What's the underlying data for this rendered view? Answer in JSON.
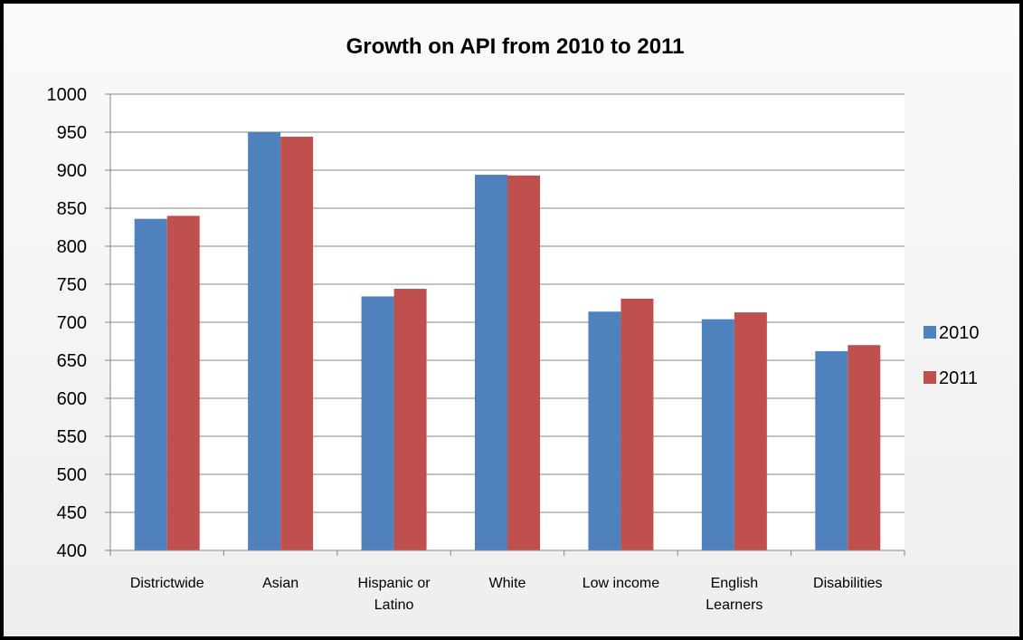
{
  "chart_data": {
    "type": "bar",
    "title": "Growth on API from 2010 to 2011",
    "xlabel": "",
    "ylabel": "",
    "categories": [
      "Districtwide",
      "Asian",
      "Hispanic or Latino",
      "White",
      "Low income",
      "English Learners",
      "Disabilities"
    ],
    "category_lines": [
      [
        "Districtwide"
      ],
      [
        "Asian"
      ],
      [
        "Hispanic or",
        "Latino"
      ],
      [
        "White"
      ],
      [
        "Low income"
      ],
      [
        "English",
        "Learners"
      ],
      [
        "Disabilities"
      ]
    ],
    "series": [
      {
        "name": "2010",
        "color": "#4F81BD",
        "values": [
          836,
          950,
          734,
          894,
          714,
          704,
          662
        ]
      },
      {
        "name": "2011",
        "color": "#C0504D",
        "values": [
          840,
          944,
          744,
          893,
          731,
          713,
          670
        ]
      }
    ],
    "ylim": [
      400,
      1000
    ],
    "yticks": [
      "400",
      "450",
      "500",
      "550",
      "600",
      "650",
      "700",
      "750",
      "800",
      "850",
      "900",
      "950",
      "1000"
    ],
    "grid": true,
    "legend_position": "right"
  }
}
